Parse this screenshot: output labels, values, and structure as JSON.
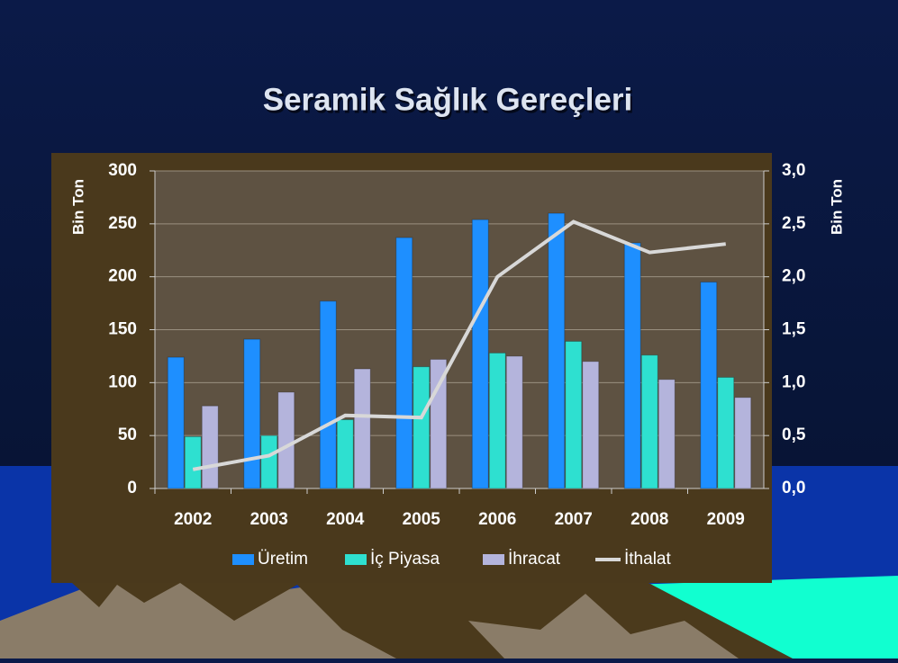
{
  "chart_data": {
    "type": "bar",
    "title": "Seramik Sağlık Gereçleri",
    "y_label": "Bin Ton",
    "y2_label": "Bin Ton",
    "categories": [
      "2002",
      "2003",
      "2004",
      "2005",
      "2006",
      "2007",
      "2008",
      "2009"
    ],
    "series": [
      {
        "name": "Üretim",
        "color": "#1e8fff",
        "values": [
          124,
          141,
          177,
          237,
          254,
          260,
          232,
          195
        ]
      },
      {
        "name": "İç Piyasa",
        "color": "#2ee0d0",
        "values": [
          49,
          50,
          65,
          115,
          128,
          139,
          126,
          105
        ]
      },
      {
        "name": "İhracat",
        "color": "#b4b4dc",
        "values": [
          78,
          91,
          113,
          122,
          125,
          120,
          103,
          86
        ]
      },
      {
        "name": "İthalat",
        "type": "line",
        "axis": "y2",
        "color": "#d8d8d8",
        "values": [
          0.18,
          0.31,
          0.69,
          0.67,
          2.0,
          2.52,
          2.23,
          2.31
        ]
      }
    ],
    "ylim": [
      0,
      300
    ],
    "yticks": [
      0,
      50,
      100,
      150,
      200,
      250,
      300
    ],
    "y2lim": [
      0,
      3
    ],
    "y2ticks": [
      {
        "value": 0,
        "label": "0,0"
      },
      {
        "value": 0.5,
        "label": "0,5"
      },
      {
        "value": 1,
        "label": "1,0"
      },
      {
        "value": 1.5,
        "label": "1,5"
      },
      {
        "value": 2,
        "label": "2,0"
      },
      {
        "value": 2.5,
        "label": "2,5"
      },
      {
        "value": 3,
        "label": "3,0"
      }
    ],
    "grid": true,
    "legend": "bottom"
  }
}
